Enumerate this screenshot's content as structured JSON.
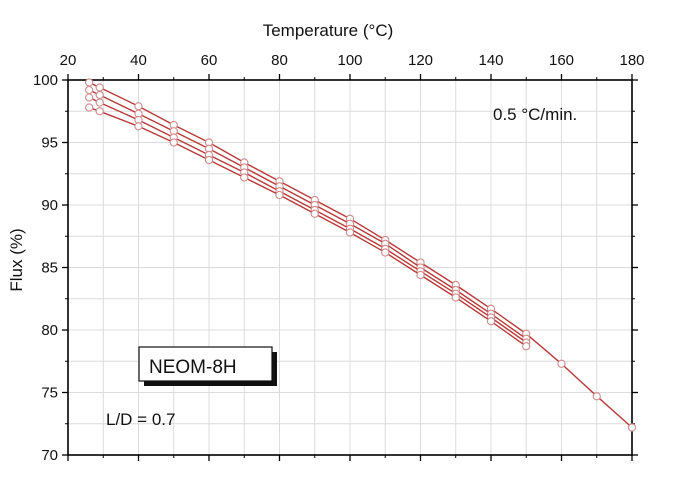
{
  "chart_data": {
    "type": "line",
    "title": "",
    "xlabel": "Temperature",
    "xlabel_unit": "(°C)",
    "ylabel": "Flux (%)",
    "xlim": [
      20,
      180
    ],
    "ylim": [
      70,
      100
    ],
    "x_axis_position": "top",
    "xticks": [
      20,
      40,
      60,
      80,
      100,
      120,
      140,
      160,
      180
    ],
    "yticks": [
      70,
      75,
      80,
      85,
      90,
      95,
      100
    ],
    "grid": true,
    "legend": "none",
    "series_color": "#b83a3a",
    "series": [
      {
        "x": [
          26,
          29,
          40,
          50,
          60,
          70,
          80,
          90,
          100,
          110,
          120,
          130,
          140,
          150,
          160,
          170,
          180
        ],
        "values": [
          99.8,
          99.4,
          97.9,
          96.4,
          95.0,
          93.4,
          91.9,
          90.4,
          88.9,
          87.2,
          85.4,
          83.6,
          81.7,
          79.7,
          77.3,
          74.7,
          72.2
        ]
      },
      {
        "x": [
          26,
          29,
          40,
          50,
          60,
          70,
          80,
          90,
          100,
          110,
          120,
          130,
          140,
          150
        ],
        "values": [
          99.2,
          98.8,
          97.3,
          95.9,
          94.5,
          93.0,
          91.5,
          90.0,
          88.5,
          86.9,
          85.0,
          83.2,
          81.3,
          79.3
        ]
      },
      {
        "x": [
          26,
          29,
          40,
          50,
          60,
          70,
          80,
          90,
          100,
          110,
          120,
          130,
          140,
          150
        ],
        "values": [
          98.6,
          98.2,
          96.8,
          95.4,
          94.0,
          92.6,
          91.1,
          89.6,
          88.1,
          86.5,
          84.7,
          82.9,
          81.0,
          79.0
        ]
      },
      {
        "x": [
          26,
          29,
          40,
          50,
          60,
          70,
          80,
          90,
          100,
          110,
          120,
          130,
          140,
          150
        ],
        "values": [
          97.8,
          97.5,
          96.3,
          95.0,
          93.6,
          92.2,
          90.8,
          89.3,
          87.8,
          86.2,
          84.4,
          82.6,
          80.7,
          78.7
        ]
      }
    ],
    "annotations": {
      "rate": "0.5 °C/min.",
      "sample": "NEOM-8H",
      "ratio": "L/D = 0.7"
    }
  }
}
